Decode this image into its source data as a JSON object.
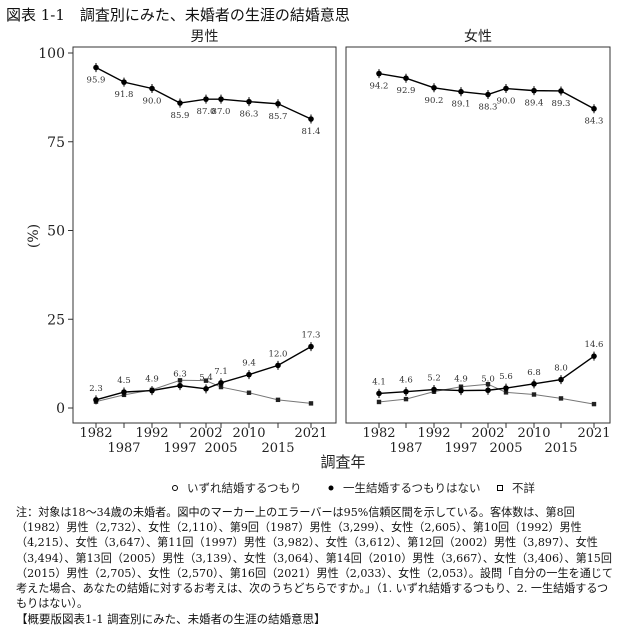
{
  "title": "図表 1-1　調査別にみた、未婚者の生涯の結婚意思",
  "chart_data": {
    "type": "line",
    "title": "図表 1-1　調査別にみた、未婚者の生涯の結婚意思",
    "xlabel": "調査年",
    "ylabel": "(%)",
    "ylim": [
      0,
      100
    ],
    "yticks": [
      0,
      25,
      50,
      75,
      100
    ],
    "xticks_upper": [
      "1982",
      "1992",
      "2002",
      "2010",
      "2021"
    ],
    "xticks_lower": [
      "1987",
      "1997",
      "2005",
      "2015"
    ],
    "x": [
      1982,
      1987,
      1992,
      1997,
      2002,
      2005,
      2010,
      2015,
      2021
    ],
    "grid": false,
    "legend_position": "bottom",
    "legend": [
      "いずれ結婚するつもり",
      "一生結婚するつもりはない",
      "不詳"
    ],
    "panels": [
      {
        "name": "男性",
        "series": [
          {
            "name": "いずれ結婚するつもり",
            "values": [
              95.9,
              91.8,
              90.0,
              85.9,
              87.0,
              87.0,
              86.3,
              85.7,
              81.4
            ],
            "labels": [
              "95.9",
              "91.8",
              "90.0",
              "85.9",
              "87.0",
              "87.0",
              "86.3",
              "85.7",
              "81.4"
            ]
          },
          {
            "name": "一生結婚するつもりはない",
            "values": [
              2.3,
              4.5,
              4.9,
              6.3,
              5.4,
              7.1,
              9.4,
              12.0,
              17.3
            ],
            "labels": [
              "2.3",
              "4.5",
              "4.9",
              "6.3",
              "5.4",
              "7.1",
              "9.4",
              "12.0",
              "17.3"
            ]
          },
          {
            "name": "不詳",
            "values": [
              1.8,
              3.7,
              5.1,
              7.8,
              7.7,
              5.9,
              4.3,
              2.3,
              1.3
            ]
          }
        ]
      },
      {
        "name": "女性",
        "series": [
          {
            "name": "いずれ結婚するつもり",
            "values": [
              94.2,
              92.9,
              90.2,
              89.1,
              88.3,
              90.0,
              89.4,
              89.3,
              84.3
            ],
            "labels": [
              "94.2",
              "92.9",
              "90.2",
              "89.1",
              "88.3",
              "90.0",
              "89.4",
              "89.3",
              "84.3"
            ]
          },
          {
            "name": "一生結婚するつもりはない",
            "values": [
              4.1,
              4.6,
              5.2,
              4.9,
              5.0,
              5.6,
              6.8,
              8.0,
              14.6
            ],
            "labels": [
              "4.1",
              "4.6",
              "5.2",
              "4.9",
              "5.0",
              "5.6",
              "6.8",
              "8.0",
              "14.6"
            ]
          },
          {
            "name": "不詳",
            "values": [
              1.7,
              2.5,
              4.6,
              6.0,
              6.7,
              4.4,
              3.8,
              2.7,
              1.1
            ]
          }
        ]
      }
    ]
  },
  "notes": "注：対象は18～34歳の未婚者。図中のマーカー上のエラーバーは95%信頼区間を示している。客体数は、第8回（1982）男性（2,732）、女性（2,110）、第9回（1987）男性（3,299）、女性（2,605）、第10回（1992）男性（4,215）、女性（3,647）、第11回（1997）男性（3,982）、女性（3,612）、第12回（2002）男性（3,897）、女性（3,494）、第13回（2005）男性（3,139）、女性（3,064）、第14回（2010）男性（3,667）、女性（3,406）、第15回（2015）男性（2,705）、女性（2,570）、第16回（2021）男性（2,033）、女性（2,053）。設問「自分の一生を通じて考えた場合、あなたの結婚に対するお考えは、次のうちどちらですか。」（1. いずれ結婚するつもり、2. 一生結婚するつもりはない）。",
  "footer": "【概要版図表1-1 調査別にみた、未婚者の生涯の結婚意思】"
}
